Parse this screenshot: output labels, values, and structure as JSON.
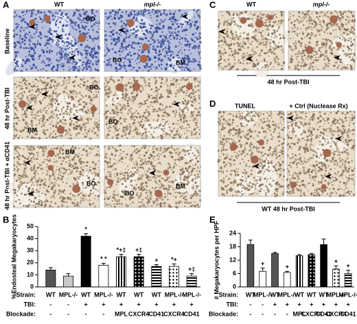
{
  "figure": {
    "panel_A": {
      "letter": "A",
      "columns": [
        "WT",
        "mpl-/-"
      ],
      "rows": [
        "Baseline",
        "48 hr Post-TBI",
        "48 hr Post-TBI + αCD41"
      ],
      "image_labels": [
        [
          "BO"
        ],
        [
          "BO",
          "BM"
        ],
        [
          "BO",
          "BM"
        ],
        [
          "BO"
        ],
        [
          "BM",
          "BO"
        ],
        [
          "BO",
          "BM"
        ]
      ]
    },
    "panel_C": {
      "letter": "C",
      "columns": [
        "WT",
        "mpl-/-"
      ],
      "caption": "48 hr Post-TBI"
    },
    "panel_D": {
      "letter": "D",
      "columns": [
        "TUNEL",
        "+ Ctrl (Nuclease Rx)"
      ],
      "caption": "WT 48 hr Post-TBI"
    }
  },
  "chart_data": [
    {
      "type": "bar",
      "panel_label": "B",
      "y_label": "%Endosteal Megakaryocytes",
      "ylim": [
        0,
        50
      ],
      "yticks": [
        0,
        10,
        20,
        30,
        40,
        50
      ],
      "row_labels": [
        "Strain:",
        "TBI:",
        "Blockade:"
      ],
      "strain": [
        "WT",
        "MPL-/-",
        "WT",
        "MPL-/-",
        "WT",
        "WT",
        "WT",
        "MPL-/-",
        "MPL-/-"
      ],
      "tbi": [
        "-",
        "-",
        "+",
        "+",
        "+",
        "+",
        "+",
        "+",
        "+"
      ],
      "blockade": [
        "-",
        "-",
        "-",
        "-",
        "MPL",
        "CXCR4",
        "CD41",
        "CXCR4",
        "CD41"
      ],
      "values": [
        14,
        9,
        42,
        18,
        25,
        25,
        17,
        17,
        9
      ],
      "errors": [
        2,
        2,
        2,
        1.5,
        2,
        2,
        1.5,
        2,
        2
      ],
      "annotations": [
        null,
        null,
        "*",
        "* *",
        "*+‡",
        "+‡",
        "+",
        "*+",
        "+‡"
      ],
      "bar_styles": [
        "dark",
        "light",
        "black",
        "white",
        "vertical-stripes",
        "white-dots",
        "horizontal-stripes",
        "black-dots",
        "horizontal-stripes"
      ]
    },
    {
      "type": "bar",
      "panel_label": "E",
      "y_label": "# Megakaryocytes per HPF",
      "ylim": [
        0,
        24
      ],
      "yticks": [
        0,
        6,
        12,
        18,
        24
      ],
      "row_labels": [
        "Strain:",
        "TBI:",
        "Blockade:"
      ],
      "strain": [
        "WT",
        "MPL-/-",
        "WT",
        "MPL-/-",
        "WT",
        "WT",
        "WT",
        "MPL-/-",
        "MPL-/-"
      ],
      "tbi": [
        "-",
        "-",
        "+",
        "+",
        "+",
        "+",
        "+",
        "+",
        "+"
      ],
      "blockade": [
        "-",
        "-",
        "-",
        "-",
        "MPL",
        "CXCR4",
        "CD41",
        "CXCR4",
        "CD41"
      ],
      "values": [
        19,
        7,
        15,
        6.5,
        14,
        14.5,
        19,
        8,
        6
      ],
      "errors": [
        2,
        1.5,
        0.5,
        0.5,
        0.5,
        0.5,
        2.5,
        1.5,
        1.5
      ],
      "annotations": [
        null,
        "+",
        null,
        "+",
        null,
        null,
        null,
        "+",
        "+"
      ],
      "bar_styles": [
        "dark",
        "white",
        "dark",
        "white",
        "vertical-stripes",
        "white-dots",
        "black",
        "black-dots",
        "horizontal-stripes"
      ]
    }
  ]
}
